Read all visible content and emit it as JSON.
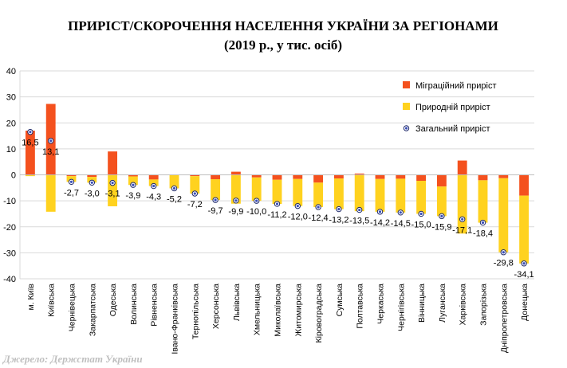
{
  "chart_data": {
    "type": "bar",
    "title": "ПРИРІСТ/СКОРОЧЕННЯ НАСЕЛЕННЯ УКРАЇНИ ЗА РЕГІОНАМИ",
    "subtitle": "(2019 р., у тис. осіб)",
    "source": "Джерело: Держстат України",
    "ylim": [
      -40,
      40
    ],
    "yticks": [
      40,
      30,
      20,
      10,
      0,
      -10,
      -20,
      -30,
      -40
    ],
    "grid": true,
    "legend_position": "top-right",
    "categories": [
      "м. Київ",
      "Київська",
      "Чернівецька",
      "Закарпатська",
      "Одеська",
      "Волинська",
      "Рівненська",
      "Івано-Франківська",
      "Тернопільська",
      "Херсонська",
      "Львівська",
      "Хмельницька",
      "Миколаївська",
      "Житомирська",
      "Кіровоградська",
      "Сумська",
      "Полтавська",
      "Черкаська",
      "Чернігівська",
      "Вінницька",
      "Луганська",
      "Харківська",
      "Запорізька",
      "Дніпропетровська",
      "Донецька"
    ],
    "series": [
      {
        "name": "Міграційний приріст",
        "color": "#f4511e",
        "kind": "bar",
        "values": [
          17,
          27.3,
          -0.5,
          -0.8,
          9,
          -0.6,
          -1.8,
          0,
          -0.5,
          -1.7,
          1.2,
          -1.0,
          -1.9,
          -1.6,
          -3.0,
          -1.4,
          0.5,
          -1.6,
          -1.5,
          -2.3,
          -4.5,
          5.5,
          -2.1,
          -1.3,
          -8.0
        ]
      },
      {
        "name": "Природній приріст",
        "color": "#ffd21f",
        "kind": "bar",
        "values": [
          -0.5,
          -14.2,
          -2.2,
          -2.2,
          -12.1,
          -3.3,
          -2.5,
          -5.2,
          -6.7,
          -8.0,
          -11.1,
          -9.0,
          -9.3,
          -10.4,
          -9.4,
          -11.8,
          -14.0,
          -12.6,
          -13.0,
          -12.7,
          -11.4,
          -22.6,
          -16.3,
          -28.5,
          -26.1
        ]
      },
      {
        "name": "Загальний приріст",
        "color": "#3b4fb8",
        "kind": "point",
        "values": [
          16.5,
          13.1,
          -2.7,
          -3.0,
          -3.1,
          -3.9,
          -4.3,
          -5.2,
          -7.2,
          -9.7,
          -9.9,
          -10.0,
          -11.2,
          -12.0,
          -12.4,
          -13.2,
          -13.5,
          -14.2,
          -14.5,
          -15.0,
          -15.9,
          -17.1,
          -18.4,
          -29.8,
          -34.1
        ]
      }
    ],
    "data_labels": [
      "16,5",
      "13,1",
      "-2,7",
      "-3,0",
      "-3,1",
      "-3,9",
      "-4,3",
      "-5,2",
      "-7,2",
      "-9,7",
      "-9,9",
      "-10,0",
      "-11,2",
      "-12,0",
      "-12,4",
      "-13,2",
      "-13,5",
      "-14,2",
      "-14,5",
      "-15,0",
      "-15,9",
      "-17,1",
      "-18,4",
      "-29,8",
      "-34,1"
    ]
  }
}
